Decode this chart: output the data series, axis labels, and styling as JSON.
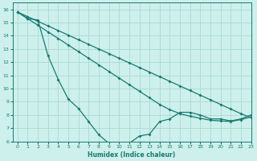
{
  "xlabel": "Humidex (Indice chaleur)",
  "xlim": [
    -0.5,
    23
  ],
  "ylim": [
    6,
    16.5
  ],
  "xticks": [
    0,
    1,
    2,
    3,
    4,
    5,
    6,
    7,
    8,
    9,
    10,
    11,
    12,
    13,
    14,
    15,
    16,
    17,
    18,
    19,
    20,
    21,
    22,
    23
  ],
  "yticks": [
    6,
    7,
    8,
    9,
    10,
    11,
    12,
    13,
    14,
    15,
    16
  ],
  "bg_color": "#cdf0ed",
  "grid_color": "#aad8d3",
  "line_color": "#1a7a6e",
  "line1_x": [
    0,
    1,
    2,
    3,
    4,
    5,
    6,
    7,
    8,
    9,
    10,
    11,
    12,
    13,
    14,
    15,
    16,
    17,
    18,
    19,
    20,
    21,
    22,
    23
  ],
  "line1_y": [
    15.8,
    15.3,
    15.2,
    12.5,
    10.7,
    9.2,
    8.5,
    7.5,
    6.5,
    5.85,
    5.85,
    5.85,
    6.4,
    6.55,
    7.5,
    7.7,
    8.2,
    8.2,
    8.0,
    7.7,
    7.7,
    7.55,
    7.7,
    8.0
  ],
  "line2_x": [
    0,
    1,
    2,
    3,
    4,
    5,
    6,
    7,
    8,
    9,
    10,
    11,
    12,
    13,
    14,
    15,
    16,
    17,
    18,
    19,
    20,
    21,
    22,
    23
  ],
  "line2_y": [
    15.8,
    15.45,
    15.1,
    14.75,
    14.4,
    14.05,
    13.7,
    13.35,
    13.0,
    12.65,
    12.3,
    11.95,
    11.6,
    11.25,
    10.9,
    10.55,
    10.2,
    9.85,
    9.5,
    9.15,
    8.8,
    8.45,
    8.1,
    7.8
  ],
  "line3_x": [
    0,
    1,
    2,
    3,
    4,
    5,
    6,
    7,
    8,
    9,
    10,
    11,
    12,
    13,
    14,
    15,
    16,
    17,
    18,
    19,
    20,
    21,
    22,
    23
  ],
  "line3_y": [
    15.8,
    15.3,
    14.8,
    14.3,
    13.8,
    13.3,
    12.8,
    12.3,
    11.8,
    11.3,
    10.8,
    10.3,
    9.8,
    9.3,
    8.8,
    8.4,
    8.1,
    7.9,
    7.75,
    7.6,
    7.55,
    7.5,
    7.65,
    7.85
  ]
}
